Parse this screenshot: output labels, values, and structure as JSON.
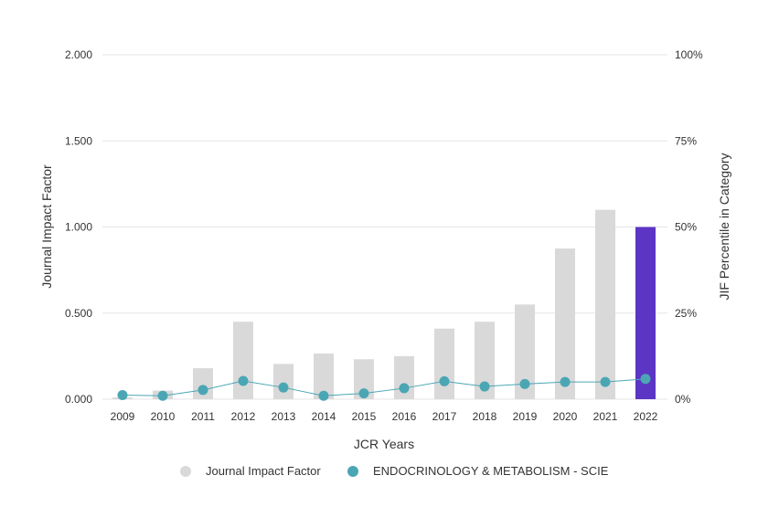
{
  "chart_data": {
    "type": "bar",
    "categories": [
      "2009",
      "2010",
      "2011",
      "2012",
      "2013",
      "2014",
      "2015",
      "2016",
      "2017",
      "2018",
      "2019",
      "2020",
      "2021",
      "2022"
    ],
    "series": [
      {
        "name": "Journal Impact Factor",
        "kind": "bar",
        "axis": "left",
        "values": [
          0.01,
          0.05,
          0.18,
          0.45,
          0.205,
          0.265,
          0.232,
          0.25,
          0.41,
          0.45,
          0.55,
          0.875,
          1.1,
          1.0
        ],
        "color": "#d9d9d9",
        "highlight_color": "#5c35c4",
        "highlight_index": 13
      },
      {
        "name": "ENDOCRINOLOGY & METABOLISM - SCIE",
        "kind": "line",
        "axis": "right",
        "values": [
          1.2,
          1.0,
          2.7,
          5.3,
          3.4,
          1.0,
          1.7,
          3.2,
          5.2,
          3.7,
          4.4,
          5.0,
          5.0,
          5.9
        ],
        "color": "#4ba6b4"
      }
    ],
    "y_left": {
      "label": "Journal Impact Factor",
      "ylim": [
        0,
        2
      ],
      "ticks": [
        0,
        0.5,
        1,
        1.5,
        2
      ],
      "tick_labels": [
        "0.000",
        "0.500",
        "1.000",
        "1.500",
        "2.000"
      ]
    },
    "y_right": {
      "label": "JIF Percentile in Category",
      "ylim": [
        0,
        100
      ],
      "ticks": [
        0,
        25,
        50,
        75,
        100
      ],
      "tick_labels": [
        "0%",
        "25%",
        "50%",
        "75%",
        "100%"
      ]
    },
    "xlabel": "JCR Years",
    "grid": true,
    "legend": {
      "position": "bottom-center",
      "entries": [
        "Journal Impact Factor",
        "ENDOCRINOLOGY & METABOLISM - SCIE"
      ]
    }
  }
}
